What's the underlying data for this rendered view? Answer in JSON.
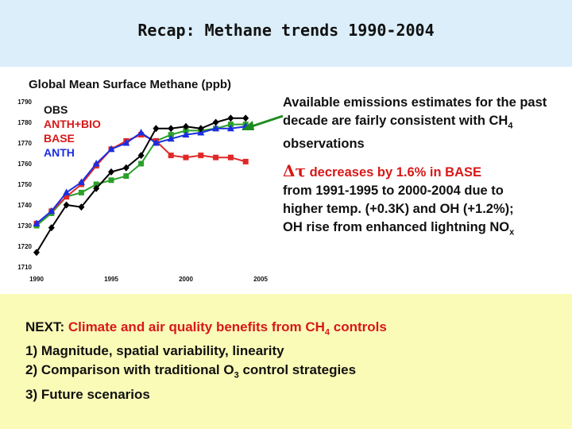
{
  "header": {
    "title": "Recap: Methane trends 1990-2004"
  },
  "chart_title": "Global Mean Surface Methane (ppb)",
  "chart_data": {
    "type": "line",
    "title": "Global Mean Surface Methane (ppb)",
    "x_ticks": [
      1990,
      1995,
      2000,
      2005
    ],
    "y_ticks": [
      1710,
      1720,
      1730,
      1740,
      1750,
      1760,
      1770,
      1780,
      1790
    ],
    "xlim": [
      1990,
      2005
    ],
    "ylim": [
      1710,
      1790
    ],
    "grid": false,
    "legend_placement": "top-left",
    "series": [
      {
        "name": "OBS",
        "color": "#000000",
        "marker": "diamond",
        "x": [
          1990,
          1991,
          1992,
          1993,
          1994,
          1995,
          1996,
          1997,
          1998,
          1999,
          2000,
          2001,
          2002,
          2003,
          2004
        ],
        "y": [
          1717,
          1729,
          1740,
          1739,
          1748,
          1756,
          1758,
          1764,
          1777,
          1777,
          1778,
          1777,
          1780,
          1782,
          1782
        ]
      },
      {
        "name": "ANTH+BIO",
        "color": "#2aa02a",
        "marker": "square",
        "x": [
          1990,
          1991,
          1992,
          1993,
          1994,
          1995,
          1996,
          1997,
          1998,
          1999,
          2000,
          2001,
          2002,
          2003,
          2004
        ],
        "y": [
          1730,
          1736,
          1744,
          1746,
          1750,
          1752,
          1754,
          1760,
          1771,
          1774,
          1776,
          1776,
          1777,
          1779,
          1779
        ]
      },
      {
        "name": "BASE",
        "color": "#e02828",
        "marker": "square",
        "x": [
          1990,
          1991,
          1992,
          1993,
          1994,
          1995,
          1996,
          1997,
          1998,
          1999,
          2000,
          2001,
          2002,
          2003,
          2004
        ],
        "y": [
          1731,
          1737,
          1744,
          1750,
          1759,
          1767,
          1771,
          1774,
          1771,
          1764,
          1763,
          1764,
          1763,
          1763,
          1761
        ]
      },
      {
        "name": "ANTH",
        "color": "#1a2ee0",
        "marker": "triangle",
        "x": [
          1990,
          1991,
          1992,
          1993,
          1994,
          1995,
          1996,
          1997,
          1998,
          1999,
          2000,
          2001,
          2002,
          2003,
          2004
        ],
        "y": [
          1731,
          1737,
          1746,
          1751,
          1760,
          1767,
          1770,
          1775,
          1770,
          1772,
          1774,
          1775,
          1777,
          1777,
          1778
        ]
      }
    ]
  },
  "right_panel": {
    "emissions_text": "Available emissions estimates for the past decade are fairly consistent with CH",
    "emissions_sub": "4",
    "emissions_end": " observations",
    "delta_symbol": "Δτ",
    "delta_text": " decreases by 1.6% in BASE",
    "line1": "from 1991-1995 to 2000-2004 due to",
    "line2": "higher temp. (+0.3K) and OH (+1.2%);",
    "line3_start": "OH rise from enhanced lightning NO",
    "line3_sub": "x"
  },
  "notes": {
    "next_label": "NEXT:",
    "next_text": " Climate and air quality benefits from CH",
    "next_sub": "4",
    "next_end": " controls",
    "items": [
      {
        "num": "1)",
        "text": "Magnitude, spatial variability, linearity"
      },
      {
        "num": "2)",
        "text_start": "Comparison with traditional O",
        "text_sub": "3",
        "text_end": " control strategies"
      },
      {
        "num": "3)",
        "text": "Future scenarios"
      }
    ]
  },
  "colors": {
    "title_band": "#dbeefa",
    "notes_band": "#fbfbb8",
    "arrow": "#1e8c1e",
    "accent_red": "#d81818"
  }
}
